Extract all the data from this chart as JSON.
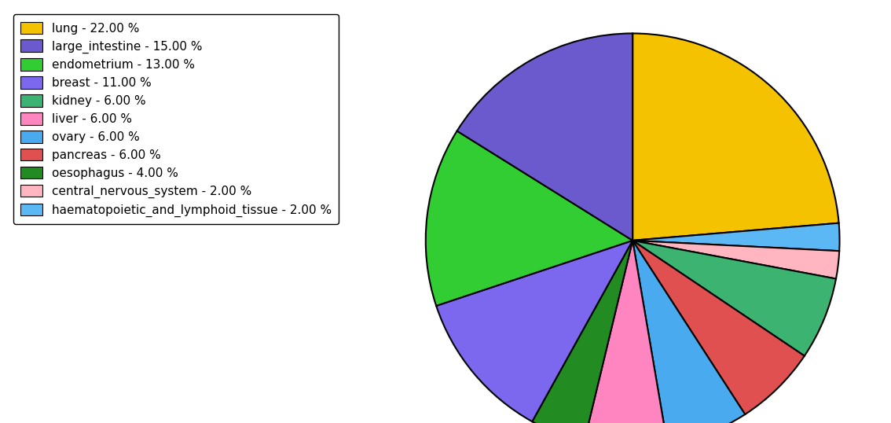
{
  "slices": [
    {
      "label": "lung",
      "value": 22,
      "color": "#F5C200",
      "legend": "lung - 22.00 %"
    },
    {
      "label": "haematopoietic_and_lymphoid_tissue",
      "value": 2,
      "color": "#5BB8F5",
      "legend": "haematopoietic_and_lymphoid_tissue - 2.00 %"
    },
    {
      "label": "central_nervous_system",
      "value": 2,
      "color": "#FFB6C1",
      "legend": "central_nervous_system - 2.00 %"
    },
    {
      "label": "kidney",
      "value": 6,
      "color": "#3CB371",
      "legend": "kidney - 6.00 %"
    },
    {
      "label": "pancreas",
      "value": 6,
      "color": "#E05050",
      "legend": "pancreas - 6.00 %"
    },
    {
      "label": "ovary",
      "value": 6,
      "color": "#4AAAEF",
      "legend": "ovary - 6.00 %"
    },
    {
      "label": "liver",
      "value": 6,
      "color": "#FF85C0",
      "legend": "liver - 6.00 %"
    },
    {
      "label": "oesophagus",
      "value": 4,
      "color": "#228B22",
      "legend": "oesophagus - 4.00 %"
    },
    {
      "label": "breast",
      "value": 11,
      "color": "#7B68EE",
      "legend": "breast - 11.00 %"
    },
    {
      "label": "endometrium",
      "value": 13,
      "color": "#32CD32",
      "legend": "endometrium - 13.00 %"
    },
    {
      "label": "large_intestine",
      "value": 15,
      "color": "#6A5ACD",
      "legend": "large_intestine - 15.00 %}"
    }
  ],
  "legend_order": [
    {
      "label": "lung",
      "color": "#F5C200",
      "legend": "lung - 22.00 %"
    },
    {
      "label": "large_intestine",
      "color": "#6A5ACD",
      "legend": "large_intestine - 15.00 %"
    },
    {
      "label": "endometrium",
      "color": "#32CD32",
      "legend": "endometrium - 13.00 %"
    },
    {
      "label": "breast",
      "color": "#7B68EE",
      "legend": "breast - 11.00 %"
    },
    {
      "label": "kidney",
      "color": "#3CB371",
      "legend": "kidney - 6.00 %"
    },
    {
      "label": "liver",
      "color": "#FF85C0",
      "legend": "liver - 6.00 %"
    },
    {
      "label": "ovary",
      "color": "#4AAAEF",
      "legend": "ovary - 6.00 %"
    },
    {
      "label": "pancreas",
      "color": "#E05050",
      "legend": "pancreas - 6.00 %"
    },
    {
      "label": "oesophagus",
      "color": "#228B22",
      "legend": "oesophagus - 4.00 %"
    },
    {
      "label": "central_nervous_system",
      "color": "#FFB6C1",
      "legend": "central_nervous_system - 2.00 %"
    },
    {
      "label": "haematopoietic_and_lymphoid_tissue",
      "color": "#5BB8F5",
      "legend": "haematopoietic_and_lymphoid_tissue - 2.00 %"
    }
  ],
  "startangle": 90,
  "background_color": "#ffffff",
  "aspect_ratio": 0.75
}
